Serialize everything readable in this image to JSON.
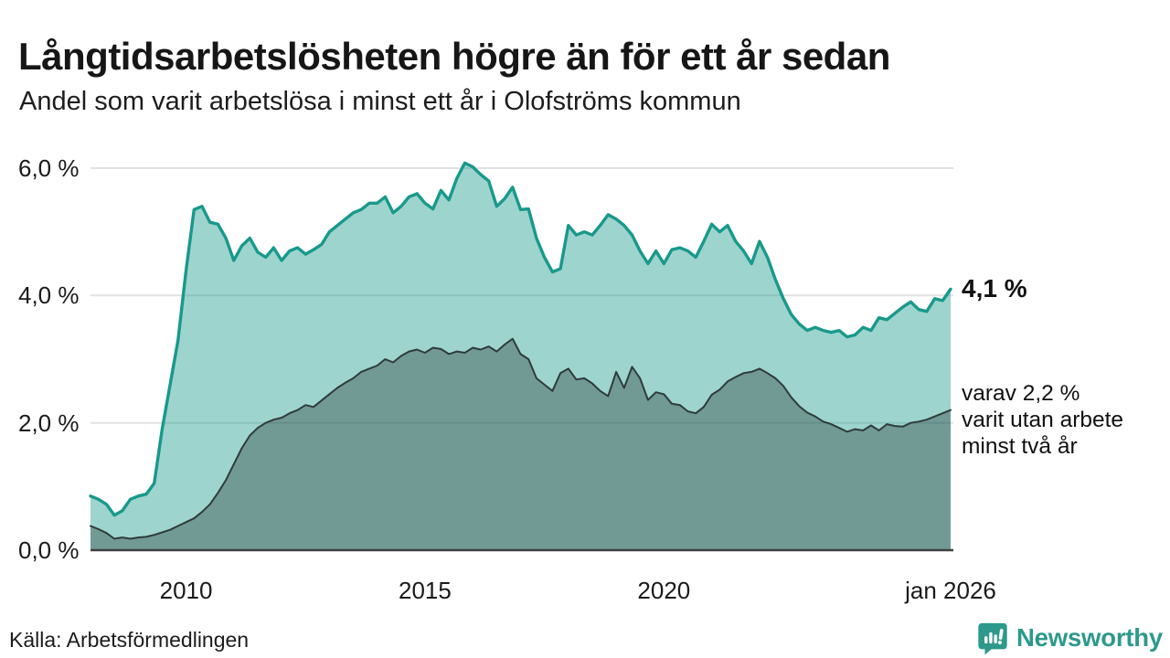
{
  "header": {
    "title": "Långtidsarbetslösheten högre än för ett år sedan",
    "subtitle": "Andel som varit arbetslösa i minst ett år i Olofströms kommun"
  },
  "annotations": {
    "latest_total": "4,1 %",
    "sub_line1": "varav 2,2 %",
    "sub_line2": "varit utan arbete",
    "sub_line3": "minst två år"
  },
  "footer": {
    "source": "Källa: Arbetsförmedlingen",
    "brand": "Newsworthy"
  },
  "icons": {
    "brand_icon": "newsworthy-speech-bubble-bar-chart"
  },
  "colors": {
    "accent_teal": "#18998b",
    "area_light": "rgba(23,152,138,0.42)",
    "area_dark_overlay": "rgba(31,46,44,0.35)",
    "line_dark": "#2e3c3a",
    "grid": "#e2e2e6",
    "axis": "#3f3f3f",
    "brand_teal": "#2d998c",
    "text": "#1a1a1a"
  },
  "chart_data": {
    "type": "area",
    "title": "Långtidsarbetslösheten högre än för ett år sedan",
    "subtitle": "Andel som varit arbetslösa i minst ett år i Olofströms kommun",
    "unit": "%",
    "grid": true,
    "legend": "none",
    "xlim": [
      2008,
      2026
    ],
    "ylim": [
      0,
      6
    ],
    "x_start": 2008.0,
    "x_step_years": 0.1666667,
    "x_ticks": [
      {
        "value": 2010,
        "label": "2010"
      },
      {
        "value": 2015,
        "label": "2015"
      },
      {
        "value": 2020,
        "label": "2020"
      },
      {
        "value": 2026,
        "label": "jan 2026"
      }
    ],
    "y_ticks": [
      {
        "value": 0,
        "label": "0,0 %"
      },
      {
        "value": 2,
        "label": "2,0 %"
      },
      {
        "value": 4,
        "label": "4,0 %"
      },
      {
        "value": 6,
        "label": "6,0 %"
      }
    ],
    "series": [
      {
        "name": "Arbetslösa minst ett år",
        "last_value": 4.1,
        "last_label": "4,1 %",
        "values": [
          0.85,
          0.8,
          0.72,
          0.55,
          0.62,
          0.8,
          0.85,
          0.88,
          1.05,
          1.9,
          2.6,
          3.3,
          4.4,
          5.35,
          5.4,
          5.15,
          5.12,
          4.9,
          4.55,
          4.78,
          4.9,
          4.68,
          4.6,
          4.75,
          4.55,
          4.7,
          4.75,
          4.65,
          4.72,
          4.8,
          5.0,
          5.1,
          5.2,
          5.3,
          5.35,
          5.45,
          5.45,
          5.55,
          5.3,
          5.4,
          5.55,
          5.6,
          5.45,
          5.36,
          5.65,
          5.5,
          5.84,
          6.08,
          6.02,
          5.9,
          5.8,
          5.4,
          5.52,
          5.7,
          5.35,
          5.36,
          4.9,
          4.6,
          4.37,
          4.42,
          5.1,
          4.95,
          5.0,
          4.95,
          5.1,
          5.27,
          5.2,
          5.1,
          4.95,
          4.7,
          4.5,
          4.7,
          4.5,
          4.72,
          4.75,
          4.7,
          4.6,
          4.85,
          5.12,
          5.0,
          5.1,
          4.85,
          4.7,
          4.5,
          4.85,
          4.6,
          4.25,
          3.95,
          3.7,
          3.55,
          3.45,
          3.5,
          3.45,
          3.42,
          3.45,
          3.35,
          3.38,
          3.5,
          3.45,
          3.65,
          3.62,
          3.72,
          3.82,
          3.9,
          3.78,
          3.75,
          3.95,
          3.92,
          4.1
        ]
      },
      {
        "name": "varav utan arbete minst två år",
        "last_value": 2.2,
        "last_label": "2,2 %",
        "values": [
          0.38,
          0.33,
          0.27,
          0.18,
          0.2,
          0.18,
          0.2,
          0.21,
          0.24,
          0.28,
          0.32,
          0.38,
          0.44,
          0.5,
          0.6,
          0.72,
          0.9,
          1.1,
          1.35,
          1.6,
          1.8,
          1.92,
          2.0,
          2.05,
          2.08,
          2.15,
          2.2,
          2.28,
          2.25,
          2.35,
          2.45,
          2.55,
          2.63,
          2.7,
          2.8,
          2.85,
          2.9,
          3.0,
          2.95,
          3.05,
          3.12,
          3.15,
          3.1,
          3.18,
          3.16,
          3.08,
          3.12,
          3.1,
          3.18,
          3.15,
          3.2,
          3.12,
          3.23,
          3.32,
          3.08,
          3.0,
          2.7,
          2.6,
          2.5,
          2.78,
          2.85,
          2.68,
          2.7,
          2.62,
          2.5,
          2.42,
          2.8,
          2.55,
          2.88,
          2.7,
          2.36,
          2.48,
          2.45,
          2.3,
          2.28,
          2.18,
          2.15,
          2.25,
          2.44,
          2.52,
          2.65,
          2.72,
          2.78,
          2.8,
          2.85,
          2.78,
          2.7,
          2.58,
          2.4,
          2.26,
          2.16,
          2.1,
          2.02,
          1.98,
          1.92,
          1.86,
          1.9,
          1.88,
          1.96,
          1.88,
          1.98,
          1.95,
          1.94,
          2.0,
          2.02,
          2.05,
          2.1,
          2.15,
          2.2
        ]
      }
    ]
  }
}
